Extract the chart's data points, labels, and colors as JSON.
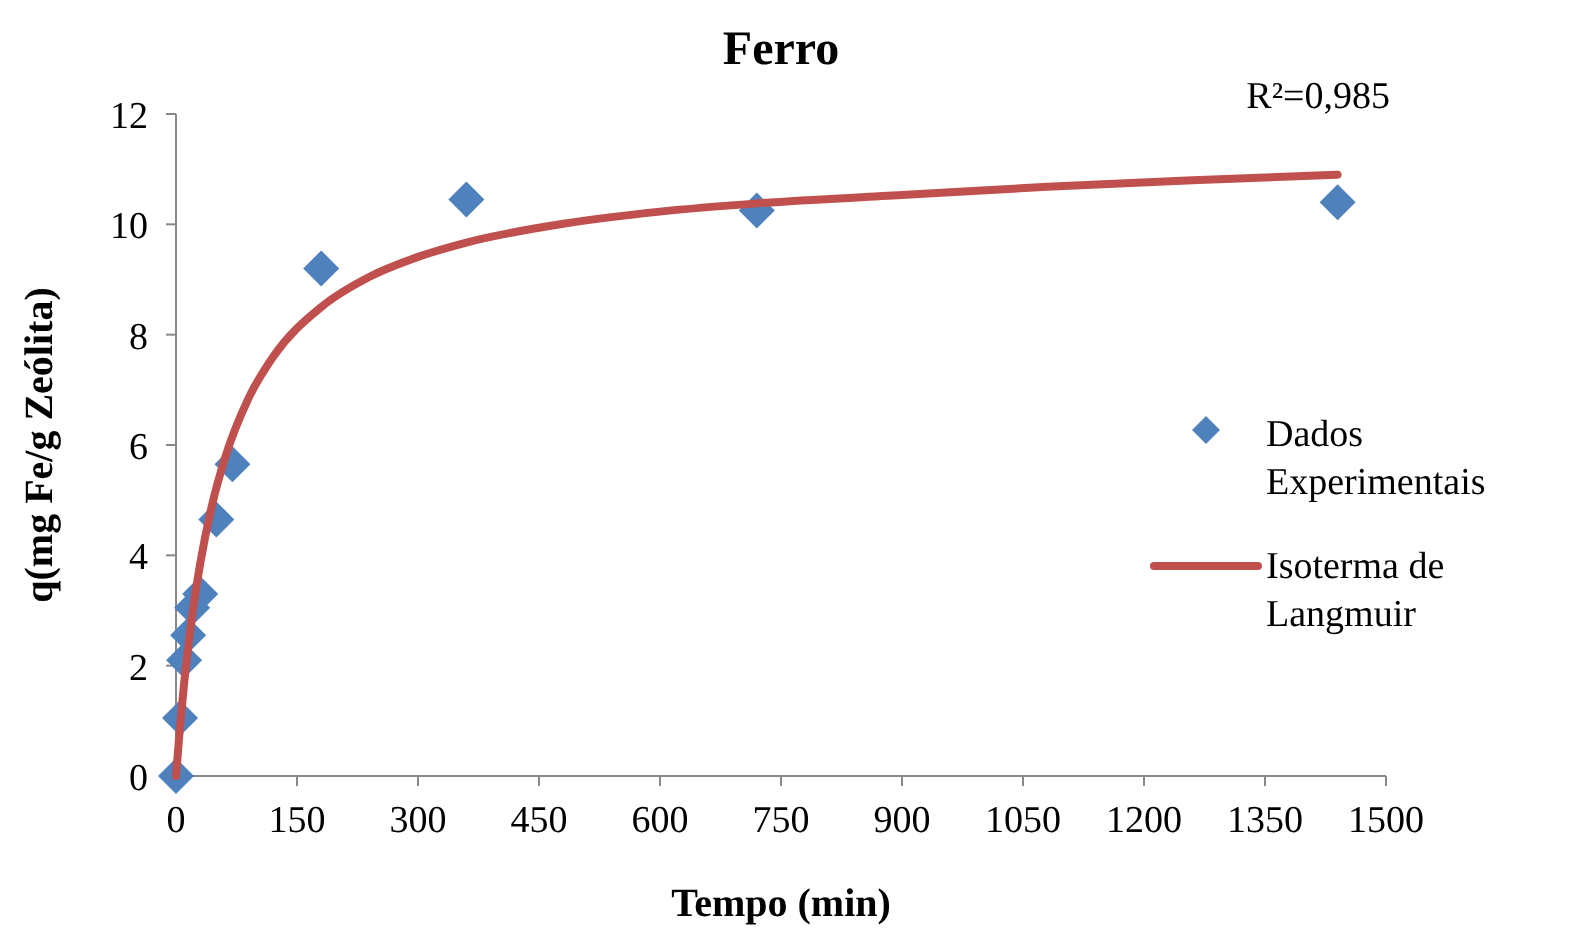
{
  "chart_data": {
    "type": "scatter",
    "title": "Ferro",
    "xlabel": "Tempo (min)",
    "ylabel": "q(mg Fe/g Zeólita)",
    "annotations": [
      "R²=0,985"
    ],
    "xlim": [
      0,
      1500
    ],
    "xticks": [
      0,
      150,
      300,
      450,
      600,
      750,
      900,
      1050,
      1200,
      1350,
      1500
    ],
    "ylim": [
      0,
      12
    ],
    "yticks": [
      0,
      2,
      4,
      6,
      8,
      10,
      12
    ],
    "grid": false,
    "legend": "right",
    "series": [
      {
        "name": "Dados Experimentais",
        "marker": "diamond",
        "color": "#4f81bd",
        "x": [
          0,
          5,
          10,
          15,
          20,
          30,
          50,
          70,
          180,
          360,
          720,
          1440
        ],
        "values": [
          0,
          1.05,
          2.1,
          2.55,
          3.05,
          3.3,
          4.65,
          5.65,
          9.2,
          10.45,
          10.25,
          10.4
        ]
      },
      {
        "name": "Isoterma de Langmuir",
        "type": "line",
        "marker": "none",
        "color": "#c0504d",
        "x": [
          0,
          5,
          10,
          20,
          30,
          45,
          60,
          90,
          120,
          180,
          240,
          300,
          360,
          480,
          600,
          720,
          900,
          1080,
          1260,
          1440
        ],
        "values": [
          0,
          0.9,
          1.67,
          2.9,
          3.85,
          4.93,
          5.73,
          6.85,
          7.59,
          8.5,
          9.05,
          9.41,
          9.67,
          10.01,
          10.23,
          10.38,
          10.53,
          10.68,
          10.8,
          10.9
        ]
      }
    ]
  }
}
